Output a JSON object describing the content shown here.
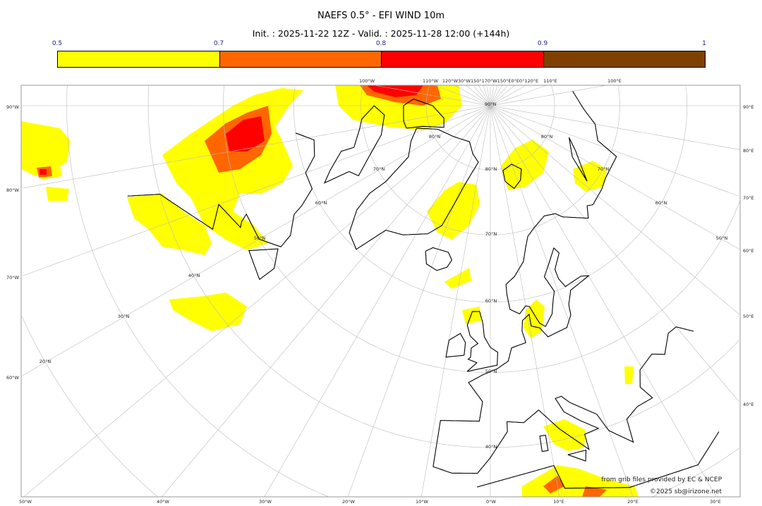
{
  "title": "NAEFS 0.5° - EFI WIND 10m",
  "subtitle": "Init. : 2025-11-22 12Z - Valid. : 2025-11-28 12:00 (+144h)",
  "colorbar": {
    "ticks": [
      "0.5",
      "0.7",
      "0.8",
      "0.9",
      "1"
    ],
    "bins": [
      {
        "range": "0.5-0.7",
        "color": "#ffff00"
      },
      {
        "range": "0.7-0.8",
        "color": "#ff6600"
      },
      {
        "range": "0.8-0.9",
        "color": "#ff0000"
      },
      {
        "range": "0.9-1",
        "color": "#7f3f00"
      }
    ]
  },
  "map": {
    "projection": "polar stereographic, central meridian 0°",
    "left_labels": [
      "90°W",
      "80°W",
      "70°W",
      "60°W"
    ],
    "right_labels": [
      "90°E",
      "80°E",
      "70°E",
      "60°E",
      "50°E",
      "40°E"
    ],
    "top_labels": [
      "100°W",
      "110°W",
      "120°W30°W150°170°W150°E0°E0°120°E",
      "110°E",
      "100°E"
    ],
    "bottom_labels": [
      "50°W",
      "40°W",
      "30°W",
      "20°W",
      "10°W",
      "0°W",
      "10°E",
      "20°E",
      "30°E"
    ],
    "lat_labels": [
      "90°N",
      "80°N",
      "70°N",
      "60°N",
      "50°N",
      "40°N",
      "30°N",
      "20°N"
    ]
  },
  "credits": {
    "source": "from grib files provided by EC & NCEP",
    "copyright": "©2025 sb@irizone.net"
  }
}
